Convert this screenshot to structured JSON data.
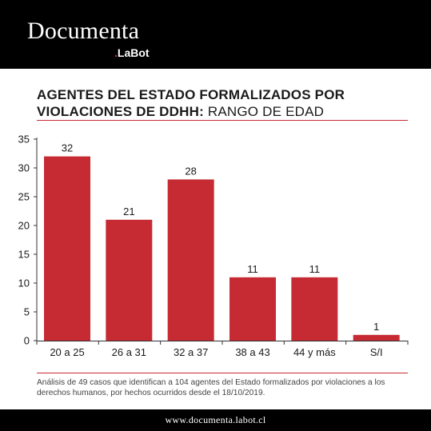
{
  "header": {
    "brand_name": "Documenta",
    "brand_dot": ".",
    "brand_sub": "LaBot"
  },
  "title": {
    "bold": "AGENTES DEL ESTADO FORMALIZADOS POR VIOLACIONES DE DDHH:",
    "regular": " RANGO DE EDAD"
  },
  "note": "Análisis de 49 casos que identifican a 104 agentes del Estado formalizados por violaciones a los derechos humanos, por hechos ocurridos desde el 18/10/2019.",
  "footer": {
    "url": "www.documenta.labot.cl"
  },
  "colors": {
    "bar": "#c62b33",
    "accent": "#d42b3a",
    "background": "#ffffff",
    "band": "#000000"
  },
  "chart_data": {
    "type": "bar",
    "categories": [
      "20 a 25",
      "26 a 31",
      "32 a 37",
      "38 a 43",
      "44 y más",
      "S/I"
    ],
    "values": [
      32,
      21,
      28,
      11,
      11,
      1
    ],
    "ylim": [
      0,
      35
    ],
    "yticks": [
      0,
      5,
      10,
      15,
      20,
      25,
      30,
      35
    ],
    "xlabel": "",
    "ylabel": "",
    "grid": false,
    "data_labels": true
  }
}
